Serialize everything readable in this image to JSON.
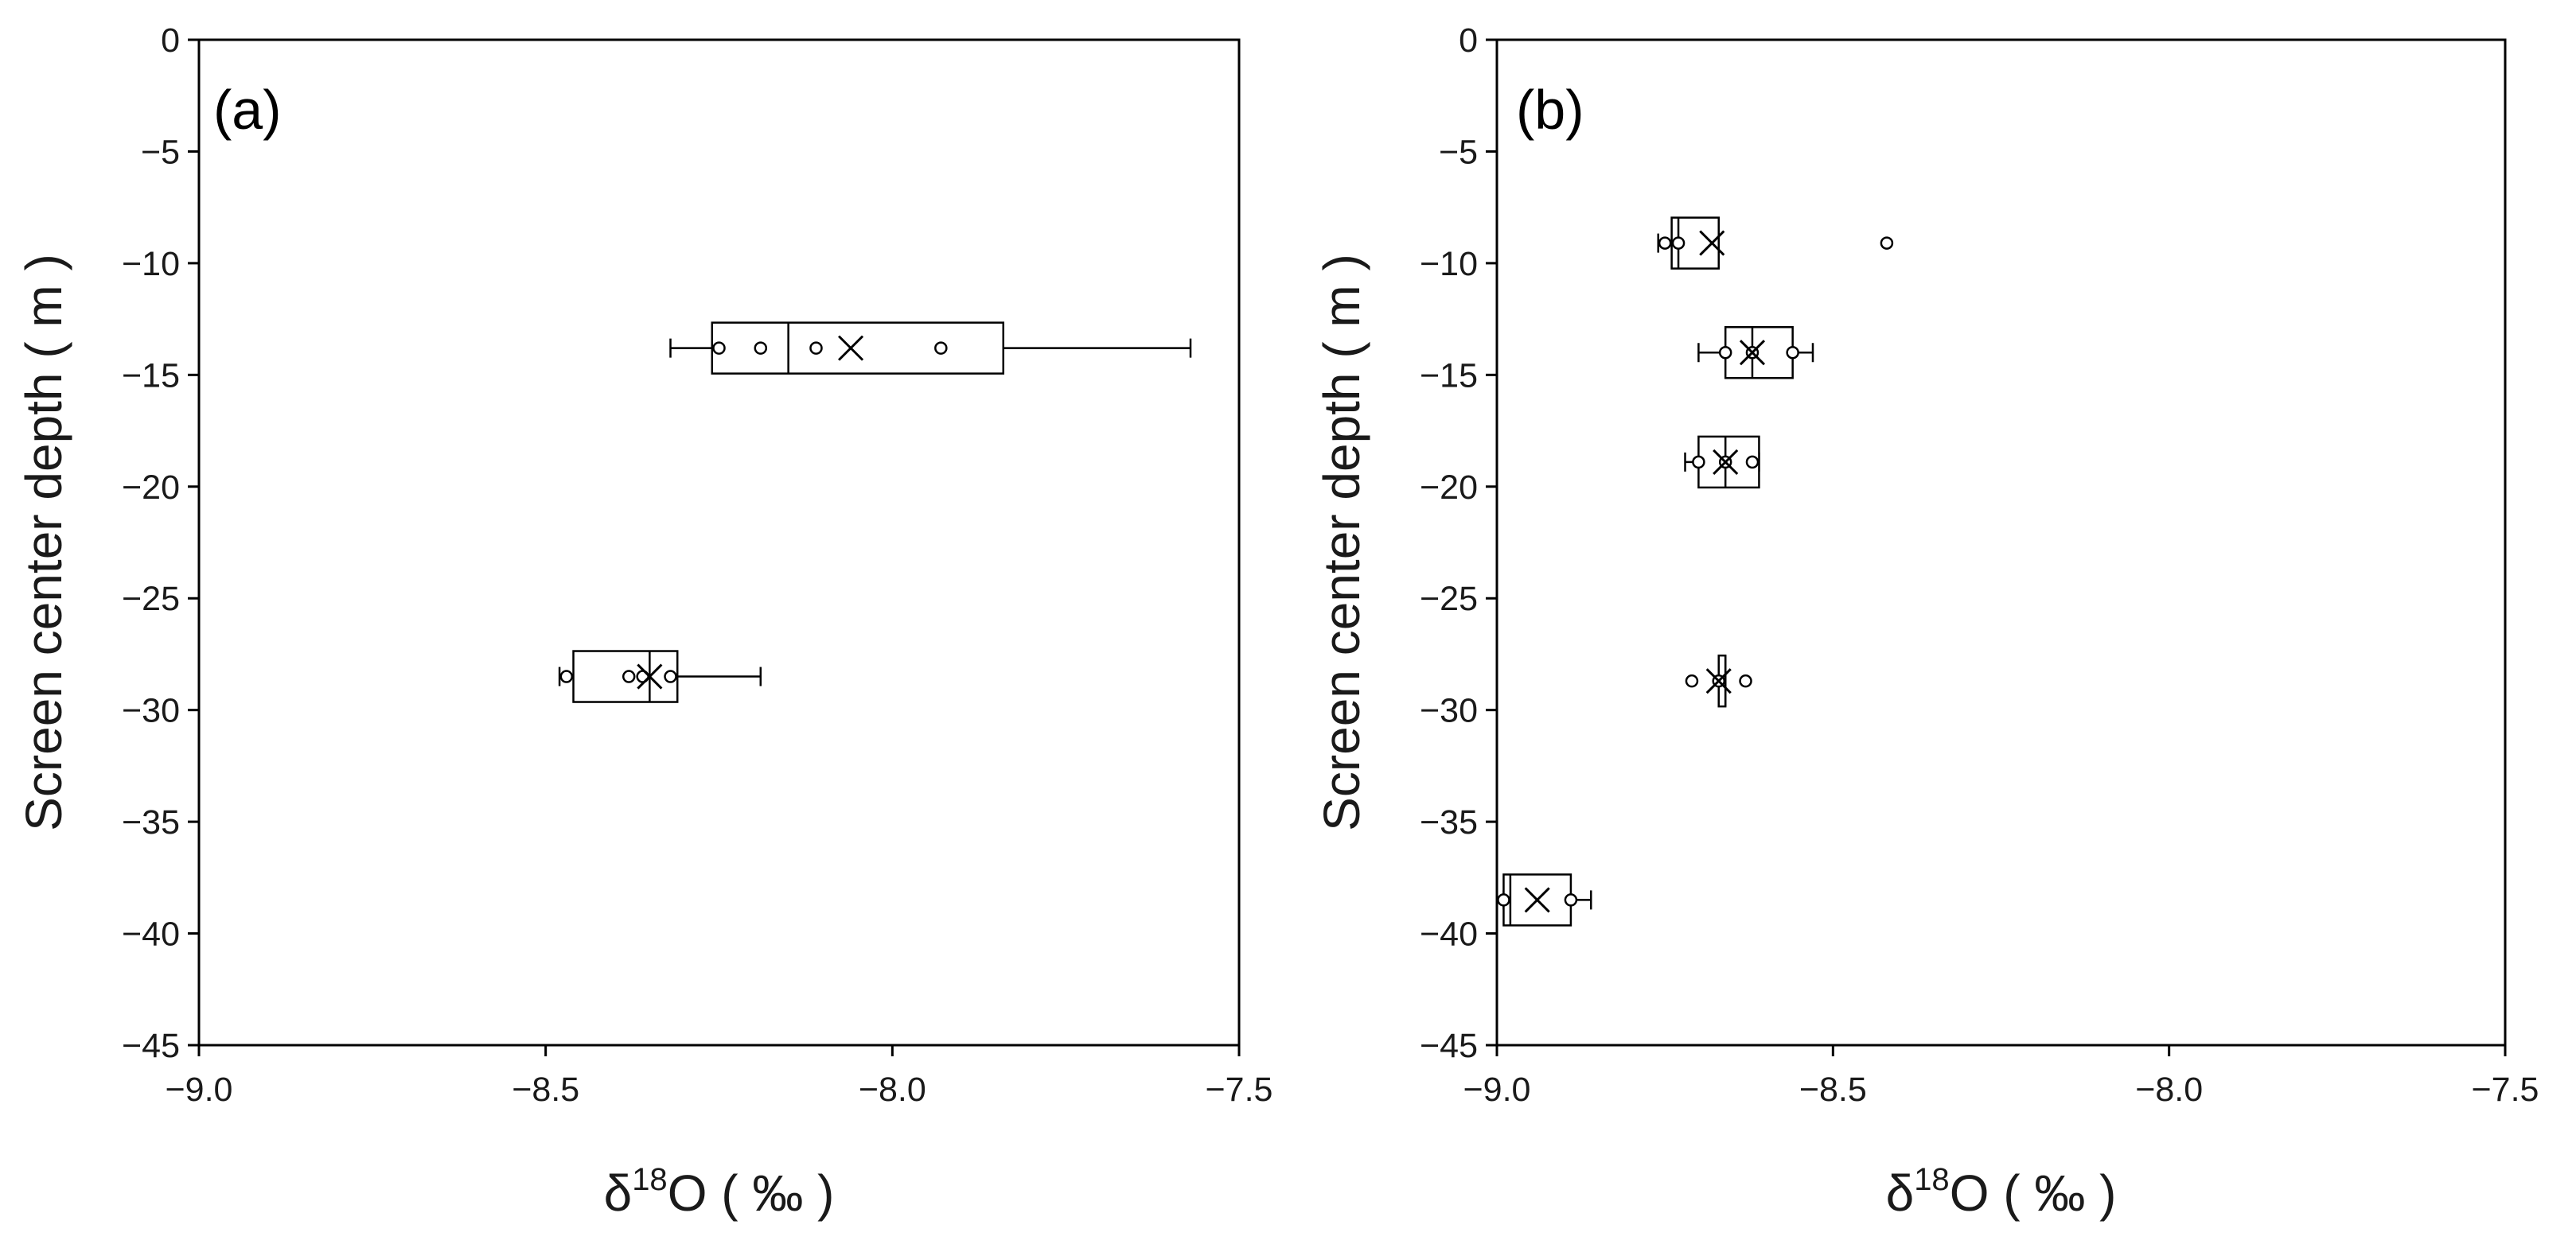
{
  "chart_data": [
    {
      "type": "boxplot",
      "orientation": "horizontal",
      "panel_label": "(a)",
      "xlabel": {
        "base": "δ",
        "sup": "18",
        "rest": "O ( ‰ )"
      },
      "ylabel": "Screen center depth ( m )",
      "xlim": [
        -9.0,
        -7.5
      ],
      "ylim": [
        -45,
        0
      ],
      "xticks": [
        "−9.0",
        "−8.5",
        "−8.0",
        "−7.5"
      ],
      "xtick_values": [
        -9.0,
        -8.5,
        -8.0,
        -7.5
      ],
      "yticks": [
        "0",
        "−5",
        "−10",
        "−15",
        "−20",
        "−25",
        "−30",
        "−35",
        "−40",
        "−45"
      ],
      "ytick_values": [
        0,
        -5,
        -10,
        -15,
        -20,
        -25,
        -30,
        -35,
        -40,
        -45
      ],
      "grid": false,
      "boxes": [
        {
          "depth": -13.8,
          "whisker_min": -8.32,
          "q1": -8.26,
          "median": -8.15,
          "q3": -7.84,
          "whisker_max": -7.57,
          "mean": -8.06,
          "points": [
            -8.25,
            -8.19,
            -8.11,
            -7.93
          ]
        },
        {
          "depth": -28.5,
          "whisker_min": -8.48,
          "q1": -8.46,
          "median": -8.35,
          "q3": -8.31,
          "whisker_max": -8.19,
          "mean": -8.35,
          "points": [
            -8.47,
            -8.38,
            -8.36,
            -8.32
          ]
        }
      ]
    },
    {
      "type": "boxplot",
      "orientation": "horizontal",
      "panel_label": "(b)",
      "xlabel": {
        "base": "δ",
        "sup": "18",
        "rest": "O ( ‰ )"
      },
      "ylabel": "Screen center depth ( m )",
      "xlim": [
        -9.0,
        -7.5
      ],
      "ylim": [
        -45,
        0
      ],
      "xticks": [
        "−9.0",
        "−8.5",
        "−8.0",
        "−7.5"
      ],
      "xtick_values": [
        -9.0,
        -8.5,
        -8.0,
        -7.5
      ],
      "yticks": [
        "0",
        "−5",
        "−10",
        "−15",
        "−20",
        "−25",
        "−30",
        "−35",
        "−40",
        "−45"
      ],
      "ytick_values": [
        0,
        -5,
        -10,
        -15,
        -20,
        -25,
        -30,
        -35,
        -40,
        -45
      ],
      "grid": false,
      "boxes": [
        {
          "depth": -9.1,
          "whisker_min": -8.76,
          "q1": -8.74,
          "median": -8.73,
          "q3": -8.67,
          "whisker_max": -8.67,
          "mean": -8.68,
          "points": [
            -8.75,
            -8.73,
            -8.42
          ]
        },
        {
          "depth": -14.0,
          "whisker_min": -8.7,
          "q1": -8.66,
          "median": -8.62,
          "q3": -8.56,
          "whisker_max": -8.53,
          "mean": -8.62,
          "points": [
            -8.66,
            -8.62,
            -8.56
          ]
        },
        {
          "depth": -18.9,
          "whisker_min": -8.72,
          "q1": -8.7,
          "median": -8.66,
          "q3": -8.61,
          "whisker_max": -8.61,
          "mean": -8.66,
          "points": [
            -8.7,
            -8.66,
            -8.62
          ]
        },
        {
          "depth": -28.7,
          "whisker_min": -8.67,
          "q1": -8.67,
          "median": -8.66,
          "q3": -8.66,
          "whisker_max": -8.66,
          "mean": -8.67,
          "points": [
            -8.71,
            -8.67,
            -8.63
          ]
        },
        {
          "depth": -38.5,
          "whisker_min": -8.99,
          "q1": -8.99,
          "median": -8.98,
          "q3": -8.89,
          "whisker_max": -8.86,
          "mean": -8.94,
          "points": [
            -8.99,
            -8.89
          ]
        }
      ]
    }
  ]
}
